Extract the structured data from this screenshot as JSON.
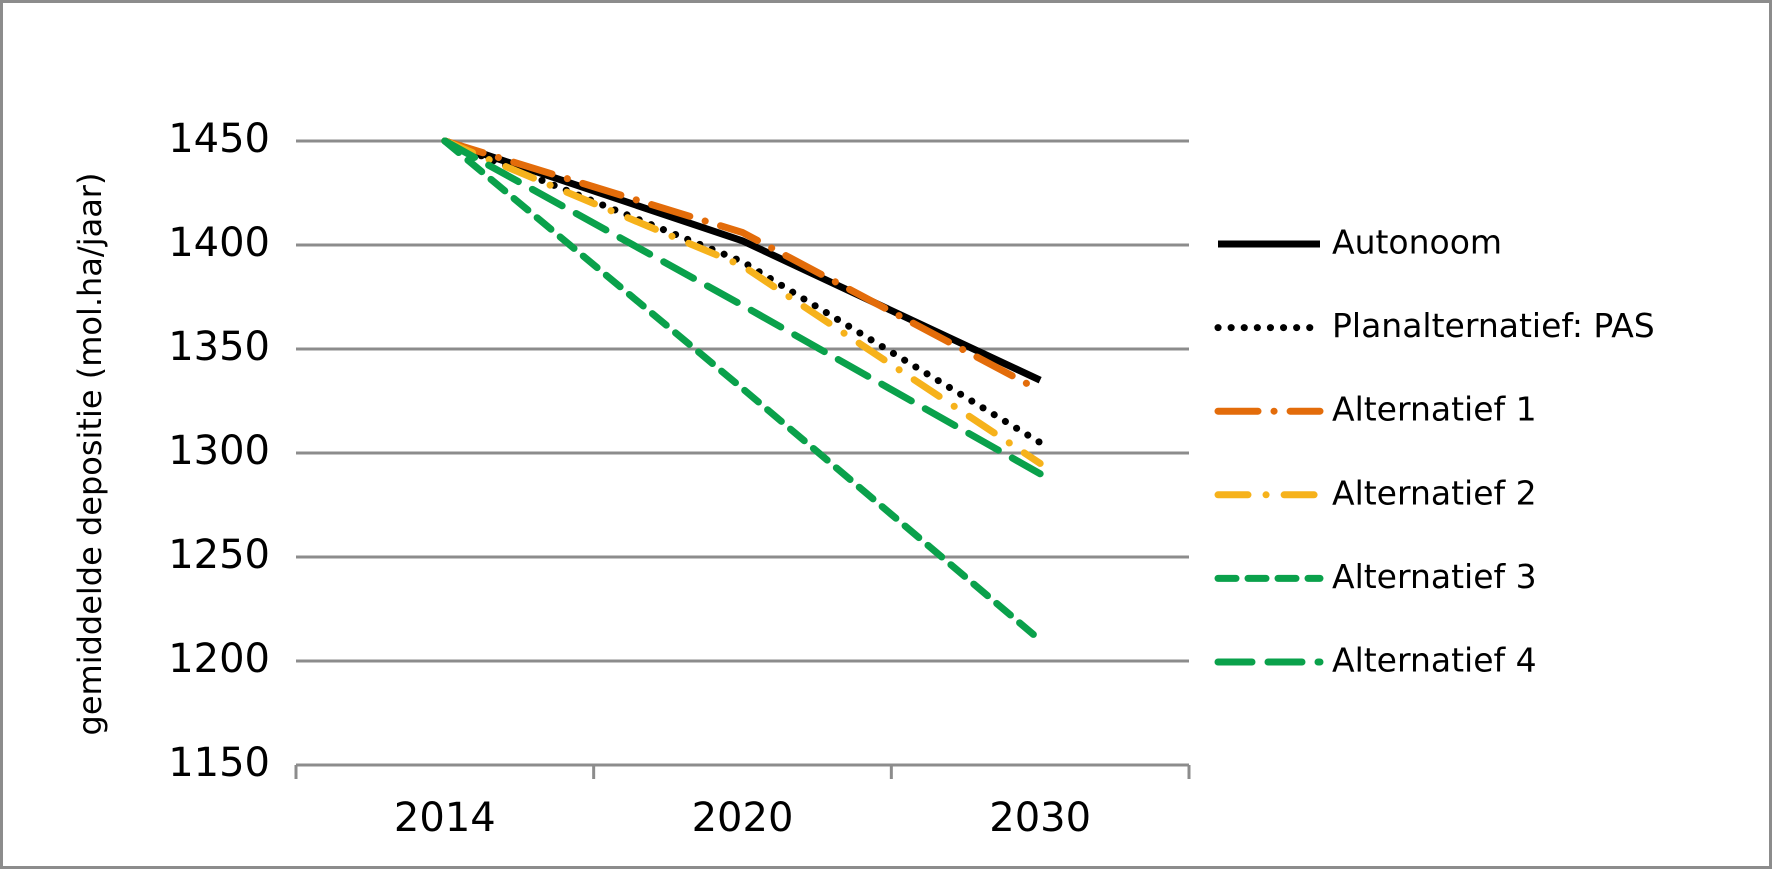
{
  "chart_data": {
    "type": "line",
    "y_label": "gemiddelde depositie (mol.ha/jaar)",
    "categories": [
      "2014",
      "2020",
      "2030"
    ],
    "ylim": [
      1150,
      1450
    ],
    "yticks": [
      1150,
      1200,
      1250,
      1300,
      1350,
      1400,
      1450
    ],
    "grid": true,
    "legend": "right",
    "series": [
      {
        "name": "Autonoom",
        "color": "#000000",
        "dash": "solid",
        "values": [
          1450,
          1402,
          1335
        ]
      },
      {
        "name": "Planalternatief: PAS",
        "color": "#000000",
        "dash": "dot",
        "values": [
          1450,
          1392,
          1305
        ]
      },
      {
        "name": "Alternatief 1",
        "color": "#e36c0a",
        "dash": "longdashdot",
        "values": [
          1450,
          1406,
          1330
        ]
      },
      {
        "name": "Alternatief 2",
        "color": "#f6b21b",
        "dash": "dashdot",
        "values": [
          1450,
          1390,
          1295
        ]
      },
      {
        "name": "Alternatief 3",
        "color": "#0aa14b",
        "dash": "dash",
        "values": [
          1450,
          1331,
          1210
        ]
      },
      {
        "name": "Alternatief 4",
        "color": "#0aa14b",
        "dash": "longdash",
        "values": [
          1450,
          1371,
          1290
        ]
      }
    ]
  }
}
